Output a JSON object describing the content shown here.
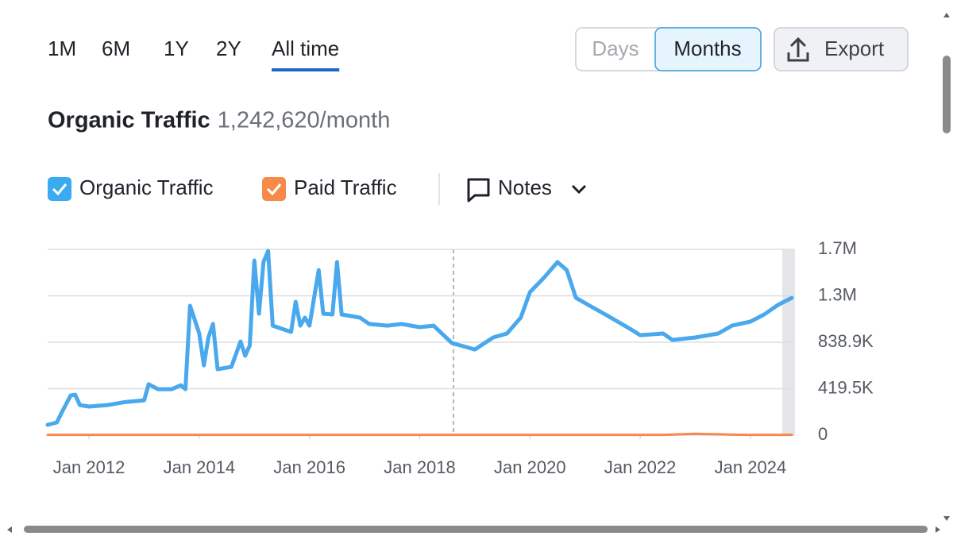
{
  "periods": [
    "1M",
    "6M",
    "1Y",
    "2Y",
    "All time"
  ],
  "active_period": 4,
  "granularity": [
    "Days",
    "Months"
  ],
  "active_granularity": 1,
  "export": "Export",
  "notes": "Notes",
  "chart_data": {
    "type": "line",
    "title": "Organic Traffic",
    "subtitle": "1,242,620/month",
    "x": [
      "2011-04",
      "2011-06",
      "2011-07",
      "2011-09",
      "2011-10",
      "2011-11",
      "2012-01",
      "2012-05",
      "2012-09",
      "2013-01",
      "2013-02",
      "2013-04",
      "2013-07",
      "2013-09",
      "2013-10",
      "2013-11",
      "2014-01",
      "2014-02",
      "2014-03",
      "2014-04",
      "2014-05",
      "2014-08",
      "2014-10",
      "2014-11",
      "2014-12",
      "2015-01",
      "2015-02",
      "2015-03",
      "2015-04",
      "2015-05",
      "2015-09",
      "2015-10",
      "2015-11",
      "2015-12",
      "2016-01",
      "2016-03",
      "2016-04",
      "2016-06",
      "2016-07",
      "2016-08",
      "2016-12",
      "2017-02",
      "2017-06",
      "2017-09",
      "2018-01",
      "2018-04",
      "2018-08",
      "2019-01",
      "2019-05",
      "2019-08",
      "2019-11",
      "2020-01",
      "2020-04",
      "2020-07",
      "2020-09",
      "2020-11",
      "2021-02",
      "2021-06",
      "2021-11",
      "2022-01",
      "2022-06",
      "2022-08",
      "2023-01",
      "2023-06",
      "2023-09",
      "2024-01",
      "2024-04",
      "2024-07",
      "2024-10"
    ],
    "series": [
      {
        "name": "Organic Traffic",
        "color": "#4aa8ed",
        "values": [
          93000,
          115000,
          200000,
          358000,
          365000,
          272000,
          258000,
          272000,
          300000,
          315000,
          460000,
          415000,
          415000,
          450000,
          415000,
          1169000,
          918000,
          630000,
          882000,
          1004000,
          595000,
          617000,
          846000,
          717000,
          810000,
          1577000,
          1097000,
          1563000,
          1663000,
          989000,
          932000,
          1204000,
          989000,
          1061000,
          989000,
          1491000,
          1097000,
          1090000,
          1563000,
          1090000,
          1061000,
          1004000,
          989000,
          1004000,
          975000,
          989000,
          832000,
          774000,
          882000,
          918000,
          1061000,
          1291000,
          1420000,
          1563000,
          1491000,
          1240000,
          1169000,
          1076000,
          954000,
          903000,
          918000,
          860000,
          882000,
          918000,
          989000,
          1025000,
          1090000,
          1176000,
          1240000
        ]
      },
      {
        "name": "Paid Traffic",
        "color": "#f5894d",
        "values": [
          3000,
          3000,
          3000,
          3000,
          3000,
          3000,
          3000,
          3000,
          3000,
          3000,
          3000,
          3000,
          3000,
          3000,
          3000,
          3000,
          3000,
          3000,
          3000,
          3000,
          3000,
          3000,
          3000,
          3000,
          3000,
          3000,
          3000,
          3000,
          3000,
          3000,
          3000,
          3000,
          3000,
          3000,
          3000,
          3000,
          3000,
          3000,
          3000,
          3000,
          3000,
          3000,
          3000,
          3000,
          3000,
          3000,
          3000,
          3000,
          3000,
          3000,
          3000,
          3000,
          3000,
          3000,
          3000,
          3000,
          3000,
          3000,
          3000,
          3000,
          3000,
          5000,
          12000,
          8000,
          4000,
          3000,
          3000,
          3000,
          3000
        ]
      }
    ],
    "xlim": [
      "2011-04",
      "2024-10"
    ],
    "xticks": [
      {
        "value": "2012-01",
        "label": "Jan 2012"
      },
      {
        "value": "2014-01",
        "label": "Jan 2014"
      },
      {
        "value": "2016-01",
        "label": "Jan 2016"
      },
      {
        "value": "2018-01",
        "label": "Jan 2018"
      },
      {
        "value": "2020-01",
        "label": "Jan 2020"
      },
      {
        "value": "2022-01",
        "label": "Jan 2022"
      },
      {
        "value": "2024-01",
        "label": "Jan 2024"
      }
    ],
    "ylim": [
      0,
      1677800
    ],
    "yticks": [
      0,
      {
        "value": 419500,
        "label": "419.5K"
      },
      {
        "value": 838900,
        "label": "838.9K"
      },
      {
        "value": 1258400,
        "label": "1.3M"
      },
      {
        "value": 1677800,
        "label": "1.7M"
      }
    ],
    "grid": true
  }
}
